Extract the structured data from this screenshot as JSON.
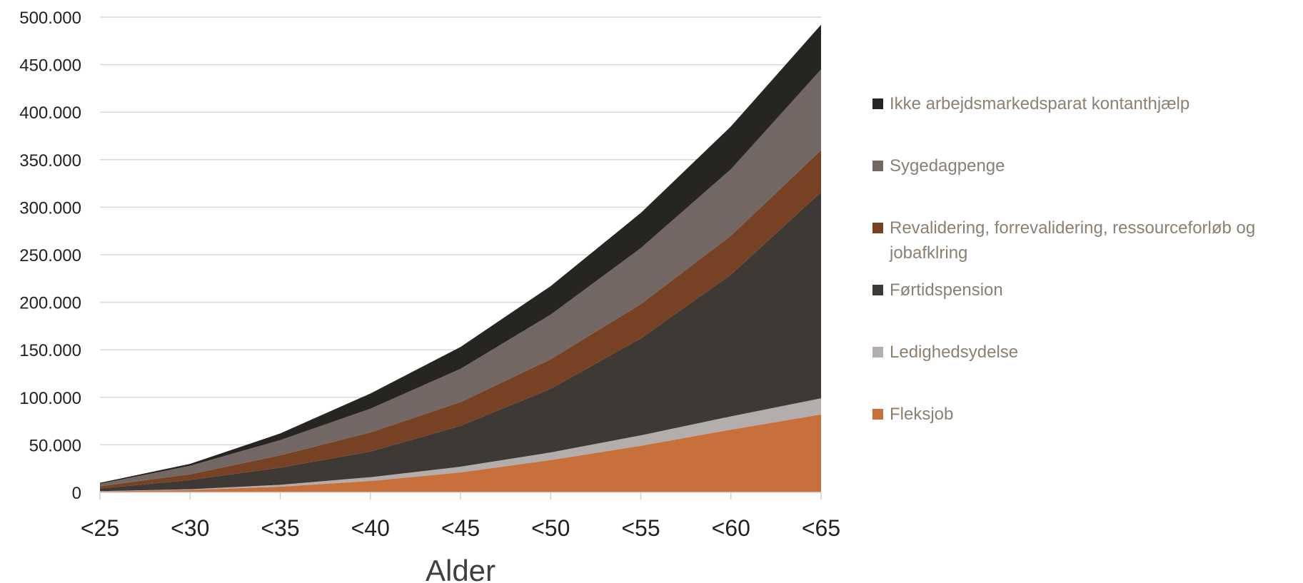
{
  "chart_data": {
    "type": "area",
    "stacked": true,
    "title": "",
    "xlabel": "Alder",
    "ylabel": "",
    "categories": [
      "<25",
      "<30",
      "<35",
      "<40",
      "<45",
      "<50",
      "<55",
      "<60",
      "<65"
    ],
    "ylim": [
      0,
      500000
    ],
    "y_ticks": [
      "0",
      "50.000",
      "100.000",
      "150.000",
      "200.000",
      "250.000",
      "300.000",
      "350.000",
      "400.000",
      "450.000",
      "500.000"
    ],
    "y_tick_values": [
      0,
      50000,
      100000,
      150000,
      200000,
      250000,
      300000,
      350000,
      400000,
      450000,
      500000
    ],
    "grid": true,
    "legend_position": "right",
    "series": [
      {
        "name": "Fleksjob",
        "color": "#c8703c",
        "values": [
          1000,
          2500,
          6000,
          12000,
          21000,
          34000,
          49000,
          66000,
          82000
        ]
      },
      {
        "name": "Ledighedsydelse",
        "color": "#b3adab",
        "values": [
          300,
          800,
          2000,
          4000,
          6000,
          8000,
          11000,
          14000,
          17000
        ]
      },
      {
        "name": "Førtidspension",
        "color": "#3e3934",
        "values": [
          2700,
          9700,
          18000,
          27000,
          43000,
          67000,
          102000,
          149000,
          217000
        ]
      },
      {
        "name": "Revalidering, forrevalidering, ressourceforløb og jobafklring",
        "color": "#774224",
        "values": [
          2500,
          6000,
          13000,
          20000,
          25000,
          31000,
          36000,
          41000,
          44000
        ]
      },
      {
        "name": "Sygedagpenge",
        "color": "#736763",
        "values": [
          2500,
          9000,
          16000,
          25000,
          35000,
          47000,
          59000,
          70000,
          85000
        ]
      },
      {
        "name": "Ikke arbejdsmarkedsparat kontanthjælp",
        "color": "#272521",
        "values": [
          1000,
          2000,
          7000,
          16000,
          23000,
          30000,
          37000,
          45000,
          47000
        ]
      }
    ],
    "legend_order": [
      "Ikke arbejdsmarkedsparat kontanthjælp",
      "Sygedagpenge",
      "Revalidering, forrevalidering, ressourceforløb og jobafklring",
      "Førtidspension",
      "Ledighedsydelse",
      "Fleksjob"
    ]
  }
}
